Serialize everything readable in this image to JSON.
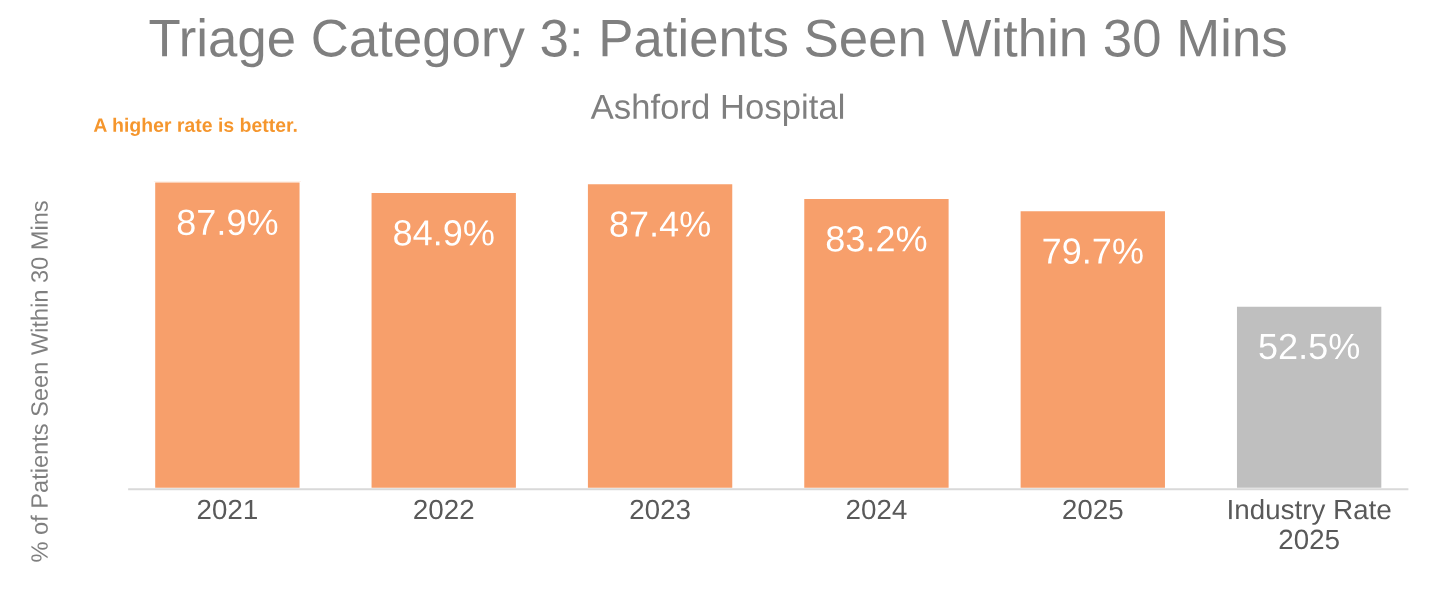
{
  "chart_data": {
    "type": "bar",
    "title": "Triage Category 3: Patients Seen Within 30 Mins",
    "subtitle": "Ashford Hospital",
    "annotations": [
      "A higher rate is better."
    ],
    "ylabel": "% of Patients Seen Within 30 Mins",
    "categories": [
      "2021",
      "2022",
      "2023",
      "2024",
      "2025",
      "Industry Rate 2025"
    ],
    "values": [
      87.9,
      84.9,
      87.4,
      83.2,
      79.7,
      52.5
    ],
    "value_labels": [
      "87.9%",
      "84.9%",
      "87.4%",
      "83.2%",
      "79.7%",
      "52.5%"
    ],
    "colors": [
      "#f79f6b",
      "#f79f6b",
      "#f79f6b",
      "#f79f6b",
      "#f79f6b",
      "#bfbfbf"
    ],
    "grid": false,
    "legend": false
  }
}
